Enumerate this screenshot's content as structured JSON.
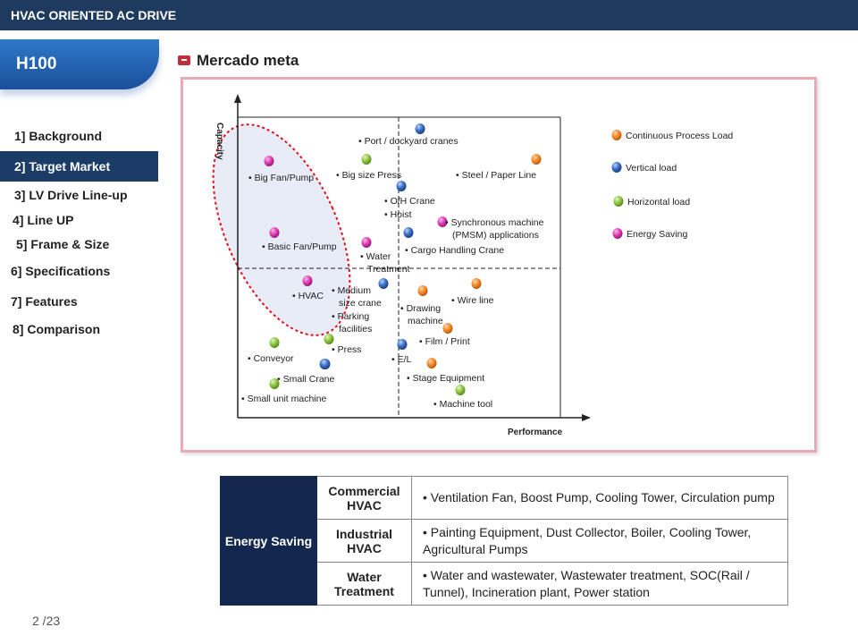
{
  "header": {
    "title": "HVAC ORIENTED AC DRIVE"
  },
  "product_tab": "H100",
  "nav": [
    {
      "label": "1] Background",
      "active": false
    },
    {
      "label": "2] Target Market",
      "active": true
    },
    {
      "label": "3] LV Drive Line-up",
      "active": false
    },
    {
      "label": "4] Line UP",
      "active": false
    },
    {
      "label": "5] Frame & Size",
      "active": false
    },
    {
      "label": "6] Specifications",
      "active": false
    },
    {
      "label": "7] Features",
      "active": false
    },
    {
      "label": "8] Comparison",
      "active": false
    }
  ],
  "section_title": "Mercado meta",
  "colors": {
    "continuous": "#f28a2a",
    "vertical": "#3a6fc4",
    "horizontal": "#8cc63f",
    "energy": "#e03cb4",
    "ellipse": "#e0101c"
  },
  "chart_data": {
    "type": "scatter",
    "xlabel": "Performance",
    "ylabel": "Capacity",
    "legend": [
      {
        "key": "continuous",
        "label": "Continuous Process Load"
      },
      {
        "key": "vertical",
        "label": "Vertical load"
      },
      {
        "key": "horizontal",
        "label": "Horizontal load"
      },
      {
        "key": "energy",
        "label": "Energy Saving"
      }
    ],
    "points": [
      {
        "label": "Port / dockyard cranes",
        "type": "vertical"
      },
      {
        "label": "Big size Press",
        "type": "horizontal"
      },
      {
        "label": "Steel / Paper Line",
        "type": "continuous"
      },
      {
        "label": "Big Fan/Pump",
        "type": "energy"
      },
      {
        "label": "O/H Crane",
        "type": "vertical"
      },
      {
        "label": "Hoist",
        "type": "vertical"
      },
      {
        "label": "Synchronous machine (PMSM) applications",
        "type": "energy"
      },
      {
        "label": "Cargo Handling Crane",
        "type": "vertical"
      },
      {
        "label": "Basic Fan/Pump",
        "type": "energy"
      },
      {
        "label": "Water Treatment",
        "type": "energy"
      },
      {
        "label": "HVAC",
        "type": "energy"
      },
      {
        "label": "Medium size crane",
        "type": "vertical"
      },
      {
        "label": "Parking facilities",
        "type": "horizontal"
      },
      {
        "label": "Drawing machine",
        "type": "continuous"
      },
      {
        "label": "Wire line",
        "type": "continuous"
      },
      {
        "label": "Film / Print",
        "type": "continuous"
      },
      {
        "label": "Conveyor",
        "type": "horizontal"
      },
      {
        "label": "Press",
        "type": "vertical"
      },
      {
        "label": "E/L",
        "type": "vertical"
      },
      {
        "label": "Small Crane",
        "type": "vertical"
      },
      {
        "label": "Stage Equipment",
        "type": "continuous"
      },
      {
        "label": "Small unit machine",
        "type": "horizontal"
      },
      {
        "label": "Machine tool",
        "type": "horizontal"
      }
    ]
  },
  "segments_table": {
    "group": "Energy Saving",
    "rows": [
      {
        "name": "Commercial HVAC",
        "items": "• Ventilation Fan, Boost Pump, Cooling Tower, Circulation pump"
      },
      {
        "name": "Industrial HVAC",
        "items": "• Painting Equipment, Dust Collector, Boiler, Cooling Tower, Agricultural Pumps"
      },
      {
        "name": "Water Treatment",
        "items": "• Water and wastewater, Wastewater treatment, SOC(Rail / Tunnel), Incineration plant, Power station"
      }
    ]
  },
  "page": "2 /23"
}
